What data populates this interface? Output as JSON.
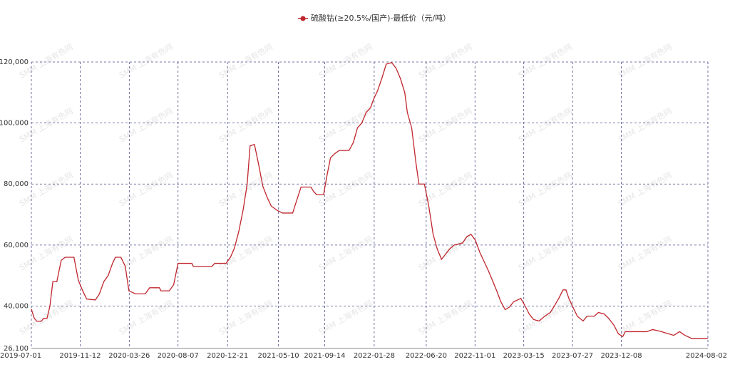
{
  "chart_data": {
    "type": "line",
    "watermark": "SMM 上海有色网",
    "x": [
      "2019-07-01",
      "2019-07-09",
      "2019-07-16",
      "2019-07-28",
      "2019-08-04",
      "2019-08-13",
      "2019-08-21",
      "2019-08-29",
      "2019-09-09",
      "2019-09-21",
      "2019-10-02",
      "2019-10-26",
      "2019-11-07",
      "2019-11-19",
      "2019-11-30",
      "2019-12-24",
      "2020-01-04",
      "2020-01-16",
      "2020-01-28",
      "2020-02-09",
      "2020-02-17",
      "2020-03-03",
      "2020-03-15",
      "2020-03-25",
      "2020-04-12",
      "2020-05-09",
      "2020-05-21",
      "2020-06-17",
      "2020-06-21",
      "2020-07-14",
      "2020-07-26",
      "2020-08-07",
      "2020-08-14",
      "2020-09-14",
      "2020-09-18",
      "2020-11-08",
      "2020-11-16",
      "2020-12-17",
      "2020-12-29",
      "2021-01-09",
      "2021-01-21",
      "2021-02-02",
      "2021-02-13",
      "2021-02-21",
      "2021-03-05",
      "2021-03-16",
      "2021-03-28",
      "2021-04-09",
      "2021-04-20",
      "2021-05-06",
      "2021-05-21",
      "2021-06-18",
      "2021-06-29",
      "2021-07-11",
      "2021-08-07",
      "2021-08-15",
      "2021-08-23",
      "2021-09-11",
      "2021-09-19",
      "2021-09-30",
      "2021-10-12",
      "2021-10-24",
      "2021-11-20",
      "2021-12-02",
      "2021-12-13",
      "2021-12-25",
      "2022-01-06",
      "2022-01-18",
      "2022-01-26",
      "2022-02-06",
      "2022-02-18",
      "2022-03-02",
      "2022-03-17",
      "2022-03-29",
      "2022-04-10",
      "2022-04-22",
      "2022-04-29",
      "2022-05-11",
      "2022-05-23",
      "2022-05-31",
      "2022-06-15",
      "2022-06-27",
      "2022-07-09",
      "2022-07-20",
      "2022-08-01",
      "2022-08-12",
      "2022-08-24",
      "2022-09-05",
      "2022-09-28",
      "2022-10-10",
      "2022-10-21",
      "2022-11-02",
      "2022-11-14",
      "2022-11-26",
      "2022-12-07",
      "2022-12-19",
      "2022-12-31",
      "2023-01-11",
      "2023-01-23",
      "2023-02-04",
      "2023-02-15",
      "2023-03-07",
      "2023-03-18",
      "2023-03-30",
      "2023-04-11",
      "2023-04-26",
      "2023-05-12",
      "2023-05-27",
      "2023-06-08",
      "2023-06-19",
      "2023-07-01",
      "2023-07-09",
      "2023-07-17",
      "2023-07-28",
      "2023-08-09",
      "2023-08-25",
      "2023-09-05",
      "2023-09-25",
      "2023-10-06",
      "2023-10-22",
      "2023-11-03",
      "2023-11-18",
      "2023-11-30",
      "2023-12-12",
      "2023-12-19",
      "2024-02-16",
      "2024-03-03",
      "2024-03-22",
      "2024-04-11",
      "2024-04-30",
      "2024-05-16",
      "2024-05-31",
      "2024-06-20",
      "2024-08-02"
    ],
    "series": [
      {
        "name": "硫酸钴(≥20.5%/国产)-最低价（元/吨）",
        "color": "#c0262d",
        "values": [
          39000,
          36000,
          35000,
          35000,
          36000,
          36000,
          40000,
          48000,
          48000,
          55000,
          56000,
          56000,
          48500,
          45000,
          42300,
          42000,
          44000,
          48000,
          50000,
          54000,
          56000,
          56000,
          53000,
          45000,
          44000,
          44000,
          46000,
          46000,
          45000,
          45000,
          47000,
          54000,
          54000,
          54000,
          53000,
          53000,
          54000,
          54000,
          56000,
          59000,
          64500,
          71600,
          80000,
          92500,
          93000,
          86700,
          79300,
          75600,
          72800,
          71400,
          70500,
          70500,
          74600,
          79000,
          79000,
          77500,
          76500,
          76500,
          82000,
          88600,
          90000,
          91000,
          91000,
          93700,
          98400,
          100000,
          103500,
          105000,
          107700,
          110500,
          114600,
          119300,
          119800,
          118000,
          114600,
          110000,
          103500,
          98400,
          86700,
          80000,
          80000,
          72800,
          63500,
          58800,
          55300,
          57000,
          58800,
          60000,
          60700,
          62800,
          63500,
          61600,
          57700,
          54600,
          51800,
          48400,
          44900,
          41400,
          38800,
          39700,
          41400,
          42500,
          40200,
          37400,
          35600,
          35100,
          36700,
          37900,
          40200,
          42500,
          45300,
          45300,
          42500,
          39700,
          36700,
          35100,
          36700,
          36700,
          37900,
          37400,
          36000,
          33700,
          30900,
          30000,
          31600,
          31600,
          32300,
          31800,
          31100,
          30400,
          31600,
          30400,
          29300,
          29300
        ]
      }
    ],
    "xlim": [
      "2019-07-01",
      "2024-08-02"
    ],
    "xticks": [
      "2019-07-01",
      "2019-11-12",
      "2020-03-26",
      "2020-08-07",
      "2020-12-21",
      "2021-05-10",
      "2021-09-14",
      "2022-01-28",
      "2022-06-20",
      "2022-11-01",
      "2023-03-15",
      "2023-07-27",
      "2023-12-08",
      "2024-08-02"
    ],
    "ylim": [
      26100,
      120000
    ],
    "yticks": [
      {
        "value": 26100,
        "label": "26,100"
      },
      {
        "value": 40000,
        "label": "40,000"
      },
      {
        "value": 60000,
        "label": "60,000"
      },
      {
        "value": 80000,
        "label": "80,000"
      },
      {
        "value": 100000,
        "label": "100,000"
      },
      {
        "value": 120000,
        "label": "120,000"
      }
    ],
    "grid": true,
    "legend": "top"
  }
}
